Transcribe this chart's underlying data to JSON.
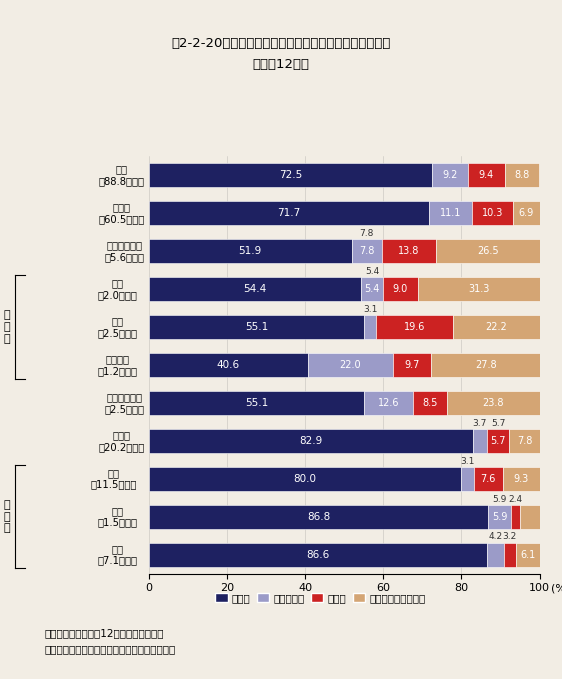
{
  "title_line1": "第2-2-20図　我が国の研究関係従事者数の組織別構成比",
  "title_line2": "（平成12年）",
  "categories": [
    "全体\n（88.8万人）",
    "会社等\n（60.5万人）",
    "政府研究機関\n（5.6万人）",
    "国営\n（2.0万人）",
    "公営\n（2.5万人）",
    "特殊法人\n（1.2万人）",
    "民営研究機関\n（2.5万人）",
    "大学等\n（20.2万人）",
    "国立\n（11.5万人）",
    "公立\n（1.5万人）",
    "私立\n（7.1万人）"
  ],
  "data": [
    [
      72.5,
      9.2,
      9.4,
      8.8
    ],
    [
      71.7,
      11.1,
      10.3,
      6.9
    ],
    [
      51.9,
      7.8,
      13.8,
      26.5
    ],
    [
      54.4,
      5.4,
      9.0,
      31.3
    ],
    [
      55.1,
      3.1,
      19.6,
      22.2
    ],
    [
      40.6,
      22.0,
      9.7,
      27.8
    ],
    [
      55.1,
      12.6,
      8.5,
      23.8
    ],
    [
      82.9,
      3.7,
      5.7,
      7.8
    ],
    [
      80.0,
      3.1,
      7.6,
      9.3
    ],
    [
      86.8,
      5.9,
      2.4,
      4.9
    ],
    [
      86.6,
      4.2,
      3.2,
      6.1
    ]
  ],
  "colors": [
    "#1e2161",
    "#9b9bc8",
    "#cc2222",
    "#d4a574"
  ],
  "legend_labels": [
    "研究者",
    "研究補助者",
    "技能者",
    "事務その他の関係者"
  ],
  "note_line1": "注）研究者数は平成12年４月１日現在。",
  "note_line2": "資料：総務省統計局「科学技術研究調査報告」",
  "background_color": "#f2ede4"
}
